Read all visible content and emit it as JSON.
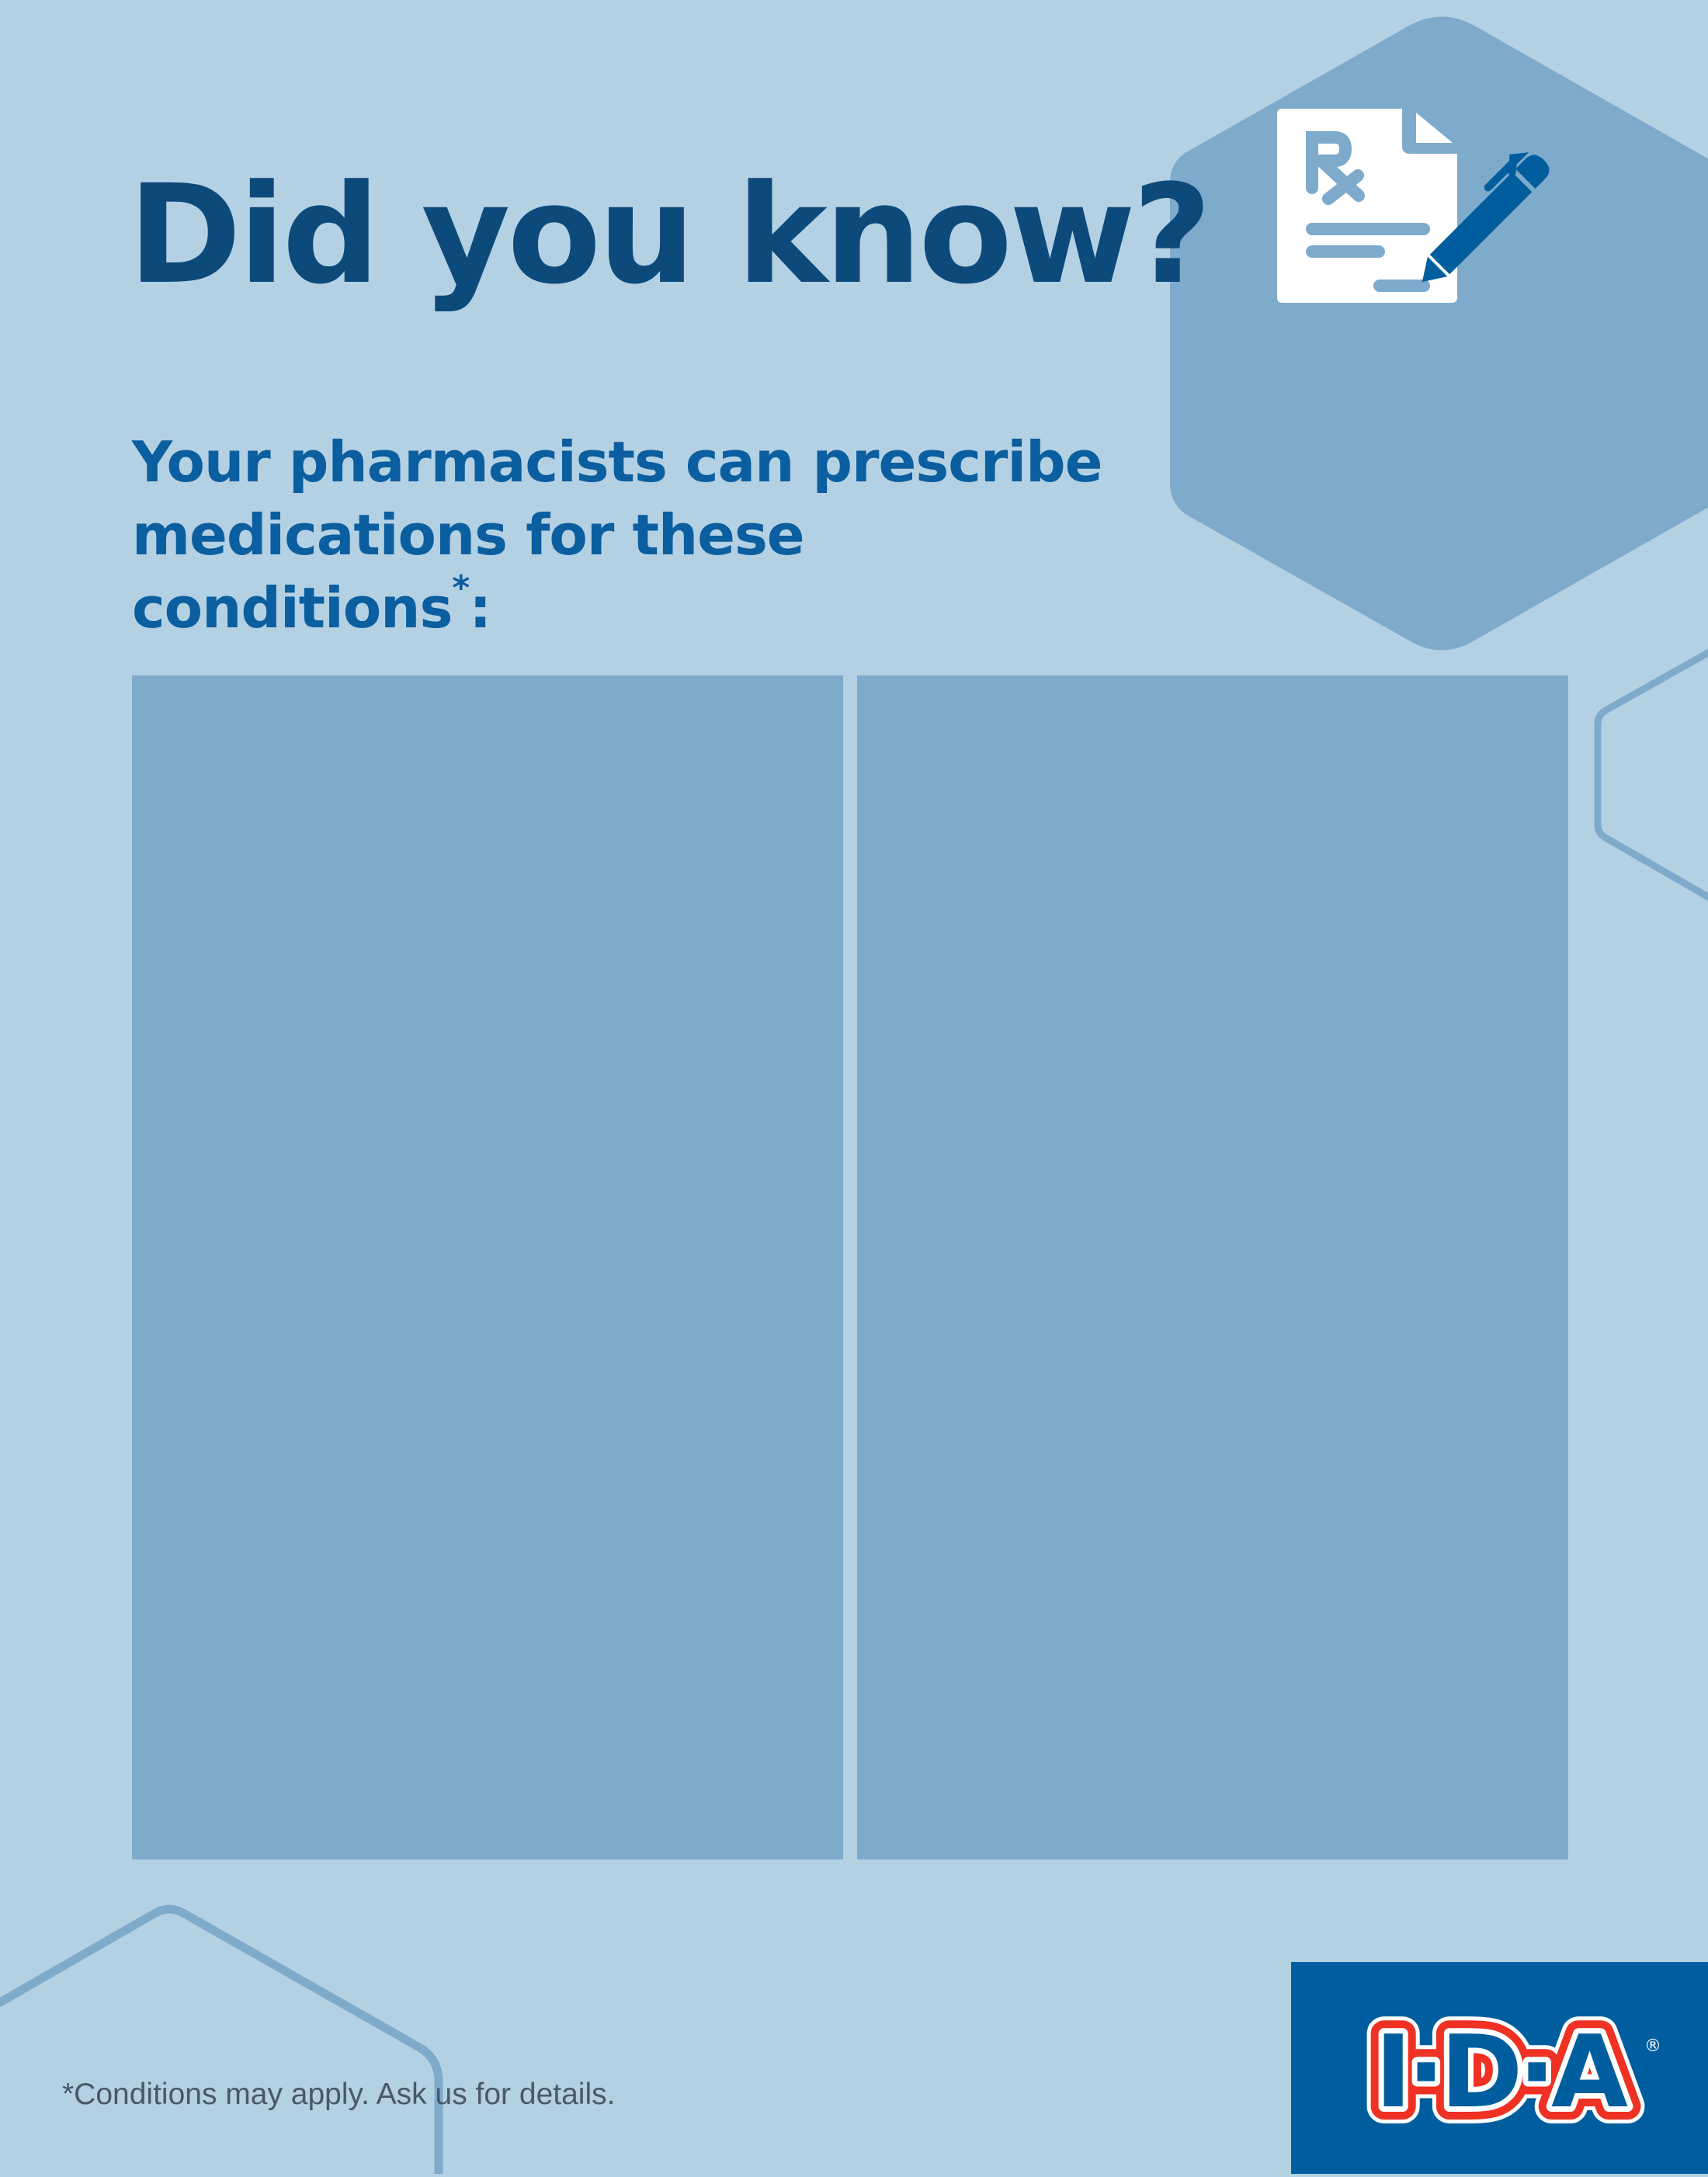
{
  "header": {
    "title": "Did you know?",
    "subtitle_line1": "Your pharmacists can prescribe",
    "subtitle_line2": "medications for these conditions",
    "subtitle_asterisk": "*",
    "subtitle_colon": ":"
  },
  "panels": [
    {
      "name": "left"
    },
    {
      "name": "right"
    }
  ],
  "icon": {
    "name": "prescription-document-with-pen-icon",
    "text": "Rx"
  },
  "footnote": "*Conditions may apply. Ask us for details.",
  "logo": {
    "text": "I·D·A",
    "registered": "®"
  },
  "colors": {
    "background": "#b4d1e3",
    "panel": "#7eaacc",
    "title": "#0d4a7c",
    "subtitle": "#0b5e9f",
    "brand_blue": "#005e9f",
    "brand_red": "#ef3124"
  }
}
